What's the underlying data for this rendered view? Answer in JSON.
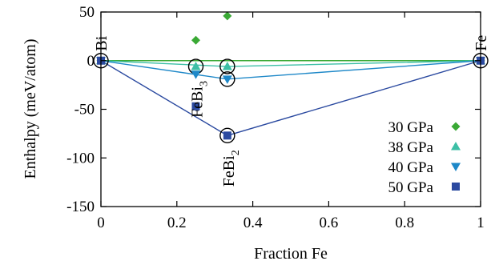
{
  "chart_data": {
    "type": "scatter",
    "xlabel": "Fraction Fe",
    "ylabel": "Enthalpy (meV/atom)",
    "xlim": [
      0,
      1
    ],
    "ylim": [
      -150,
      50
    ],
    "x_ticks": [
      0,
      0.2,
      0.4,
      0.6,
      0.8,
      1
    ],
    "x_tick_labels": [
      "0",
      "0.2",
      "0.4",
      "0.6",
      "0.8",
      "1"
    ],
    "y_ticks": [
      -150,
      -100,
      -50,
      0,
      50
    ],
    "y_tick_labels": [
      "-150",
      "-100",
      "-50",
      "0",
      "50"
    ],
    "grid": false,
    "legend_position": "bottom-right",
    "series": [
      {
        "name": "30 GPa",
        "marker": "diamond",
        "color": "#3aa935",
        "x": [
          0,
          0.25,
          0.333,
          1
        ],
        "y": [
          0,
          21,
          46,
          0
        ],
        "hull": [
          [
            0,
            0
          ],
          [
            1,
            0
          ]
        ]
      },
      {
        "name": "38 GPa",
        "marker": "triangle-up",
        "color": "#3cbfa6",
        "x": [
          0,
          0.25,
          0.333,
          1
        ],
        "y": [
          0,
          -6,
          -6,
          0
        ],
        "hull": [
          [
            0,
            0
          ],
          [
            0.333,
            -6
          ],
          [
            1,
            0
          ]
        ]
      },
      {
        "name": "40 GPa",
        "marker": "triangle-down",
        "color": "#1e88c8",
        "x": [
          0,
          0.25,
          0.333,
          1
        ],
        "y": [
          0,
          -14,
          -19,
          0
        ],
        "hull": [
          [
            0,
            0
          ],
          [
            0.333,
            -19
          ],
          [
            1,
            0
          ]
        ]
      },
      {
        "name": "50 GPa",
        "marker": "square",
        "color": "#2b4aa0",
        "x": [
          0,
          0.25,
          0.333,
          1
        ],
        "y": [
          0,
          -47,
          -77,
          0
        ],
        "hull": [
          [
            0,
            0
          ],
          [
            0.333,
            -77
          ],
          [
            1,
            0
          ]
        ]
      }
    ],
    "circled_points": [
      {
        "x": 0,
        "y": 0
      },
      {
        "x": 0.25,
        "y": -6
      },
      {
        "x": 0.333,
        "y": -6
      },
      {
        "x": 0.333,
        "y": -19
      },
      {
        "x": 0.333,
        "y": -77
      },
      {
        "x": 1,
        "y": 0
      }
    ],
    "annotations": [
      {
        "text": "Bi",
        "sub": "",
        "x": 0,
        "y": 0
      },
      {
        "text": "Fe",
        "sub": "",
        "x": 1,
        "y": 0
      },
      {
        "text": "FeBi",
        "sub": "3",
        "x": 0.25,
        "y": -6
      },
      {
        "text": "FeBi",
        "sub": "2",
        "x": 0.333,
        "y": -77
      }
    ]
  }
}
